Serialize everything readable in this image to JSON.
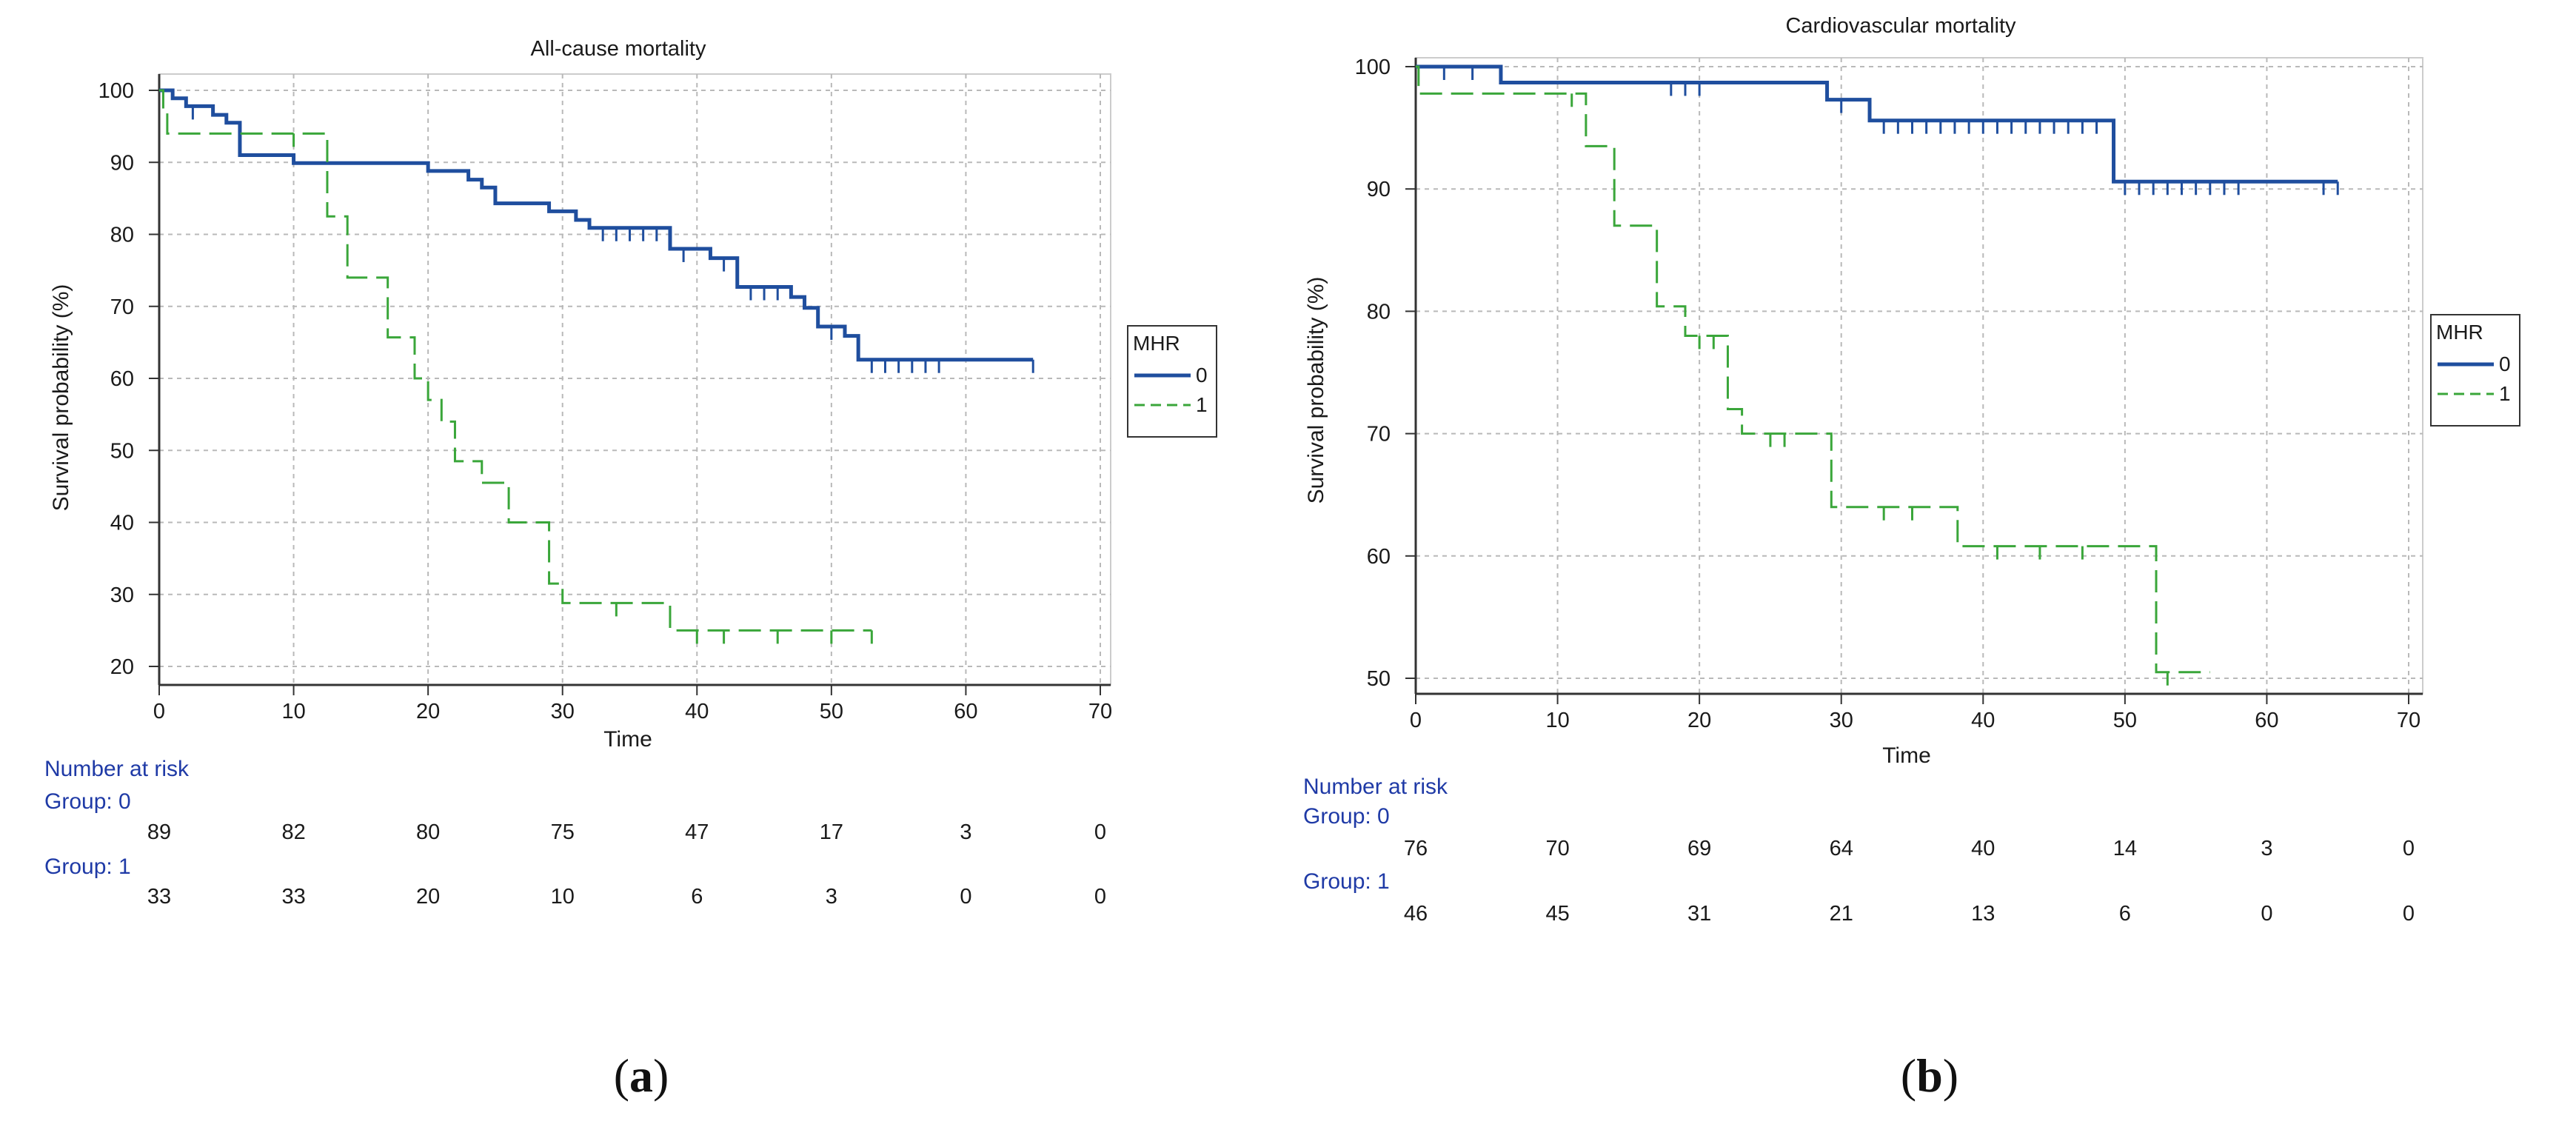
{
  "panels": [
    {
      "label": "a",
      "chart_data": {
        "type": "line",
        "subtype": "kaplan-meier",
        "title": "All-cause mortality",
        "xlabel": "Time",
        "ylabel": "Survival probability (%)",
        "xlim": [
          0,
          70
        ],
        "ylim": [
          20,
          100
        ],
        "xticks": [
          0,
          10,
          20,
          30,
          40,
          50,
          60,
          70
        ],
        "yticks": [
          20,
          30,
          40,
          50,
          60,
          70,
          80,
          90,
          100
        ],
        "grid": true,
        "legend": {
          "title": "MHR",
          "placement": "right",
          "entries": [
            "0",
            "1"
          ]
        },
        "series": [
          {
            "name": "0",
            "color": "#1f4e9e",
            "style": "solid",
            "steps": [
              [
                0,
                100
              ],
              [
                1,
                98.9
              ],
              [
                2,
                97.8
              ],
              [
                4,
                96.6
              ],
              [
                5,
                95.5
              ],
              [
                6,
                91
              ],
              [
                10,
                89.9
              ],
              [
                20,
                88.8
              ],
              [
                23,
                87.6
              ],
              [
                24,
                86.5
              ],
              [
                25,
                84.3
              ],
              [
                29,
                83.2
              ],
              [
                31,
                82
              ],
              [
                32,
                80.9
              ],
              [
                38,
                78
              ],
              [
                41,
                76.7
              ],
              [
                43,
                72.7
              ],
              [
                47,
                71.3
              ],
              [
                48,
                69.8
              ],
              [
                49,
                67.2
              ],
              [
                51,
                65.9
              ],
              [
                52,
                62.6
              ],
              [
                65,
                62.6
              ]
            ],
            "censored": [
              2.5,
              33,
              34,
              35,
              36,
              37,
              39,
              42,
              44,
              45,
              46,
              50,
              53,
              54,
              55,
              56,
              57,
              58,
              65
            ]
          },
          {
            "name": "1",
            "color": "#3aa63a",
            "style": "dashed",
            "steps": [
              [
                0,
                100
              ],
              [
                0.3,
                97
              ],
              [
                0.6,
                94
              ],
              [
                12,
                94
              ],
              [
                12.5,
                82.5
              ],
              [
                14,
                74
              ],
              [
                17,
                65.7
              ],
              [
                19,
                60
              ],
              [
                20,
                57
              ],
              [
                21,
                54
              ],
              [
                22,
                48.5
              ],
              [
                24,
                45.5
              ],
              [
                26,
                40
              ],
              [
                29,
                31.5
              ],
              [
                30,
                28.8
              ],
              [
                33,
                28.8
              ],
              [
                38,
                25
              ],
              [
                53,
                25
              ]
            ],
            "censored": [
              10,
              34,
              40,
              42,
              46,
              50,
              53
            ]
          }
        ],
        "risk_table": {
          "header": "Number at risk",
          "times": [
            0,
            10,
            20,
            30,
            40,
            50,
            60,
            70
          ],
          "groups": [
            {
              "label": "Group: 0",
              "values": [
                "89",
                "82",
                "80",
                "75",
                "47",
                "17",
                "3",
                "0"
              ]
            },
            {
              "label": "Group: 1",
              "values": [
                "33",
                "33",
                "20",
                "10",
                "6",
                "3",
                "0",
                "0"
              ]
            }
          ]
        }
      }
    },
    {
      "label": "b",
      "chart_data": {
        "type": "line",
        "subtype": "kaplan-meier",
        "title": "Cardiovascular mortality",
        "xlabel": "Time",
        "ylabel": "Survival probability (%)",
        "xlim": [
          0,
          70
        ],
        "ylim": [
          50,
          100
        ],
        "xticks": [
          0,
          10,
          20,
          30,
          40,
          50,
          60,
          70
        ],
        "yticks": [
          50,
          60,
          70,
          80,
          90,
          100
        ],
        "grid": true,
        "legend": {
          "title": "MHR",
          "placement": "right",
          "entries": [
            "0",
            "1"
          ]
        },
        "series": [
          {
            "name": "0",
            "color": "#1f4e9e",
            "style": "solid",
            "steps": [
              [
                0,
                100
              ],
              [
                6,
                98.7
              ],
              [
                29,
                97.3
              ],
              [
                32,
                95.6
              ],
              [
                49,
                95.6
              ],
              [
                49.2,
                90.6
              ],
              [
                65,
                90.6
              ]
            ],
            "censored": [
              2,
              4,
              18,
              19,
              20,
              30,
              33,
              34,
              35,
              36,
              37,
              38,
              39,
              40,
              41,
              42,
              43,
              44,
              45,
              46,
              47,
              48,
              50,
              51,
              52,
              53,
              54,
              55,
              56,
              57,
              58,
              64,
              65
            ]
          },
          {
            "name": "1",
            "color": "#3aa63a",
            "style": "dashed",
            "steps": [
              [
                0,
                100
              ],
              [
                0.2,
                97.8
              ],
              [
                11,
                97.8
              ],
              [
                12,
                93.5
              ],
              [
                14,
                87
              ],
              [
                17,
                80.4
              ],
              [
                19,
                78
              ],
              [
                22,
                72
              ],
              [
                23,
                70
              ],
              [
                29,
                70
              ],
              [
                29.3,
                64
              ],
              [
                38,
                64
              ],
              [
                38.2,
                60.8
              ],
              [
                52,
                60.8
              ],
              [
                52.2,
                50.5
              ],
              [
                56,
                50.5
              ]
            ],
            "censored": [
              11,
              20,
              21,
              25,
              26,
              33,
              35,
              41,
              44,
              47,
              53
            ]
          }
        ],
        "risk_table": {
          "header": "Number at risk",
          "times": [
            0,
            10,
            20,
            30,
            40,
            50,
            60,
            70
          ],
          "groups": [
            {
              "label": "Group: 0",
              "values": [
                "76",
                "70",
                "69",
                "64",
                "40",
                "14",
                "3",
                "0"
              ]
            },
            {
              "label": "Group: 1",
              "values": [
                "46",
                "45",
                "31",
                "21",
                "13",
                "6",
                "0",
                "0"
              ]
            }
          ]
        }
      }
    }
  ]
}
